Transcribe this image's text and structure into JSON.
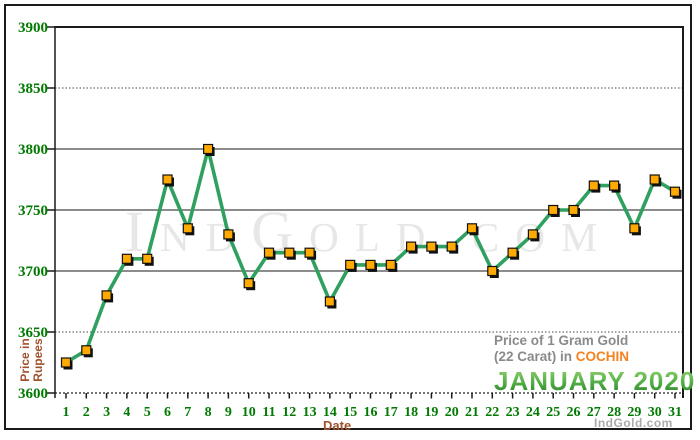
{
  "chart_data": {
    "type": "line",
    "title": "Price of 1 Gram Gold (22 Carat) in COCHIN - JANUARY 2020",
    "x": [
      1,
      2,
      3,
      4,
      5,
      6,
      7,
      8,
      9,
      10,
      11,
      12,
      13,
      14,
      15,
      16,
      17,
      18,
      19,
      20,
      21,
      22,
      23,
      24,
      25,
      26,
      27,
      28,
      29,
      30,
      31
    ],
    "values": [
      3625,
      3635,
      3680,
      3710,
      3710,
      3775,
      3735,
      3800,
      3730,
      3690,
      3715,
      3715,
      3715,
      3675,
      3705,
      3705,
      3705,
      3720,
      3720,
      3720,
      3735,
      3700,
      3715,
      3730,
      3750,
      3750,
      3770,
      3770,
      3735,
      3775,
      3765
    ],
    "xlabel": "Date",
    "ylabel": "Price in Rupees",
    "ylim": [
      3600,
      3900
    ],
    "yticks": [
      3600,
      3650,
      3700,
      3750,
      3800,
      3850,
      3900
    ],
    "grid_solid": [
      3700,
      3750,
      3800
    ],
    "grid_dotted": [
      3650,
      3850
    ],
    "legend": "none"
  },
  "titles": {
    "line1": "Price of 1 Gram Gold",
    "line2": "(22 Carat) in",
    "city": "COCHIN",
    "month": "JANUARY 2020"
  },
  "watermark_text": "IndGold.com",
  "brand_text": "IndGold.com",
  "colors": {
    "axis_label_green": "#007a00",
    "axis_title_brown": "#a0522d",
    "grid_gray": "#8c8c8c",
    "dotted_grid": "#444444",
    "line_green": "#2fa060",
    "marker_orange": "#ffaa00",
    "marker_border": "#111111",
    "marker_shadow": "#111111",
    "title_gray": "#8a8a8a",
    "city_orange": "#f58220",
    "month_green": "#3f9e3f",
    "watermark_gray": "#e7e7e7",
    "brand_gray": "#ababab"
  }
}
